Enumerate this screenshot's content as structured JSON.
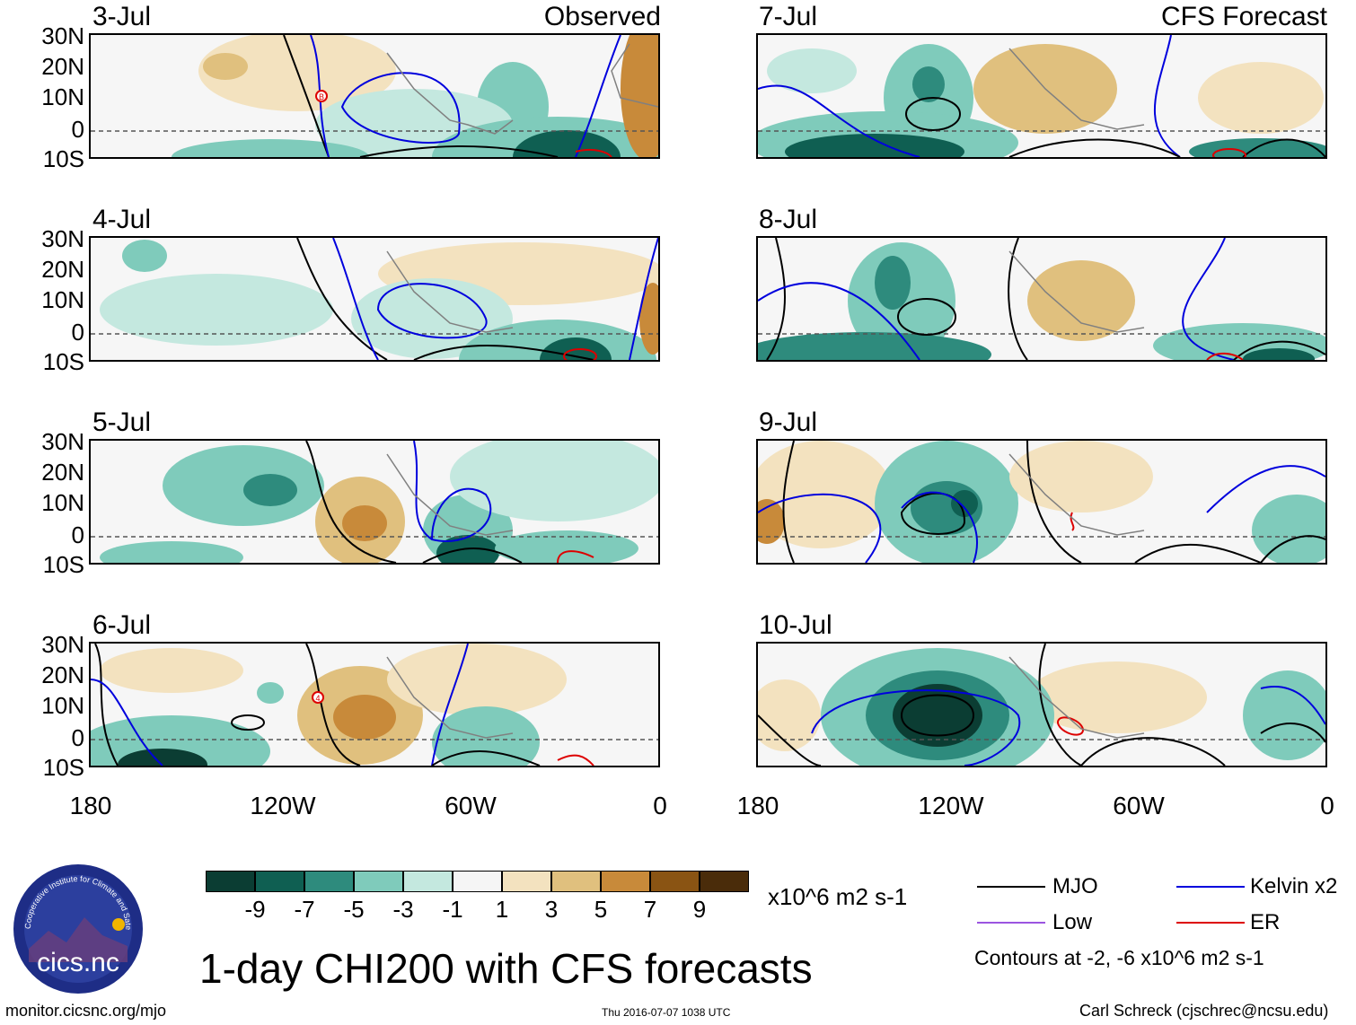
{
  "figure": {
    "title": "1-day CHI200 with CFS forecasts",
    "units": "x10^6 m2 s-1",
    "observed_label": "Observed",
    "forecast_label": "CFS Forecast",
    "source_url": "monitor.cicsnc.org/mjo",
    "timestamp": "Thu 2016-07-07 1038 UTC",
    "credit": "Carl Schreck (cjschrec@ncsu.edu)",
    "logo_text": "cics.nc",
    "logo_ring_text": "Cooperative Institute for Climate and Satellites"
  },
  "axes": {
    "lat_labels": [
      "30N",
      "20N",
      "10N",
      "0",
      "10S"
    ],
    "lon_labels": [
      "180",
      "120W",
      "60W",
      "0"
    ]
  },
  "panels": [
    {
      "date": "3-Jul",
      "kind": "observed"
    },
    {
      "date": "4-Jul",
      "kind": "observed"
    },
    {
      "date": "5-Jul",
      "kind": "observed"
    },
    {
      "date": "6-Jul",
      "kind": "observed"
    },
    {
      "date": "7-Jul",
      "kind": "forecast"
    },
    {
      "date": "8-Jul",
      "kind": "forecast"
    },
    {
      "date": "9-Jul",
      "kind": "forecast"
    },
    {
      "date": "10-Jul",
      "kind": "forecast"
    }
  ],
  "colorbar": {
    "labels": [
      "-9",
      "-7",
      "-5",
      "-3",
      "-1",
      "1",
      "3",
      "5",
      "7",
      "9"
    ],
    "colors": [
      "#0b3d33",
      "#0f5f52",
      "#2e8b7d",
      "#7fcbbb",
      "#c4e8df",
      "#f5f5f5",
      "#f3e2bf",
      "#e0c07e",
      "#c88a3a",
      "#8a5413",
      "#4a2c0a"
    ]
  },
  "legend": {
    "items": [
      {
        "label": "MJO",
        "color": "#000000"
      },
      {
        "label": "Kelvin x2",
        "color": "#0000dd"
      },
      {
        "label": "Low",
        "color": "#9b55e0"
      },
      {
        "label": "ER",
        "color": "#dd0000"
      }
    ],
    "contour_note": "Contours at -2, -6 x10^6 m2 s-1"
  },
  "markers": {
    "obs_3jul": "B",
    "obs_6jul": "4"
  }
}
